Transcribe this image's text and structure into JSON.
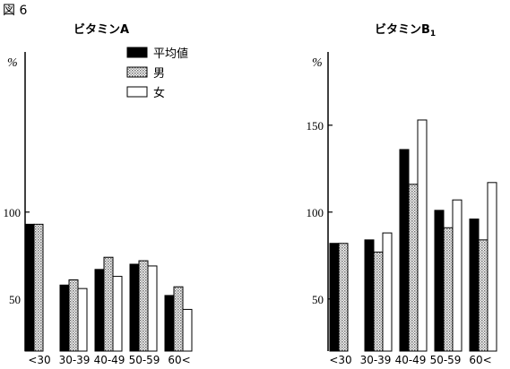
{
  "figure_label": "図 6",
  "colors": {
    "series": [
      "#000000",
      "hatched-gray",
      "#ffffff"
    ]
  },
  "chart_data": [
    {
      "type": "bar",
      "title": "ビタミンA",
      "ylabel": "%",
      "ylim": [
        20,
        180
      ],
      "yticks": [
        50,
        100
      ],
      "categories": [
        "<30",
        "30-39",
        "40-49",
        "50-59",
        "60<"
      ],
      "series": [
        {
          "name": "平均値",
          "values": [
            93,
            58,
            67,
            70,
            52
          ]
        },
        {
          "name": "男",
          "values": [
            93,
            61,
            74,
            72,
            57
          ]
        },
        {
          "name": "女",
          "values": [
            null,
            56,
            63,
            69,
            44
          ]
        }
      ],
      "legend": "top-right"
    },
    {
      "type": "bar",
      "title": "ビタミンB",
      "title_sub": "1",
      "ylabel": "%",
      "ylim": [
        20,
        180
      ],
      "yticks": [
        50,
        100,
        150
      ],
      "categories": [
        "<30",
        "30-39",
        "40-49",
        "50-59",
        "60<"
      ],
      "series": [
        {
          "name": "平均値",
          "values": [
            82,
            84,
            136,
            101,
            96
          ]
        },
        {
          "name": "男",
          "values": [
            82,
            77,
            116,
            91,
            84
          ]
        },
        {
          "name": "女",
          "values": [
            null,
            88,
            153,
            107,
            117
          ]
        }
      ]
    }
  ]
}
